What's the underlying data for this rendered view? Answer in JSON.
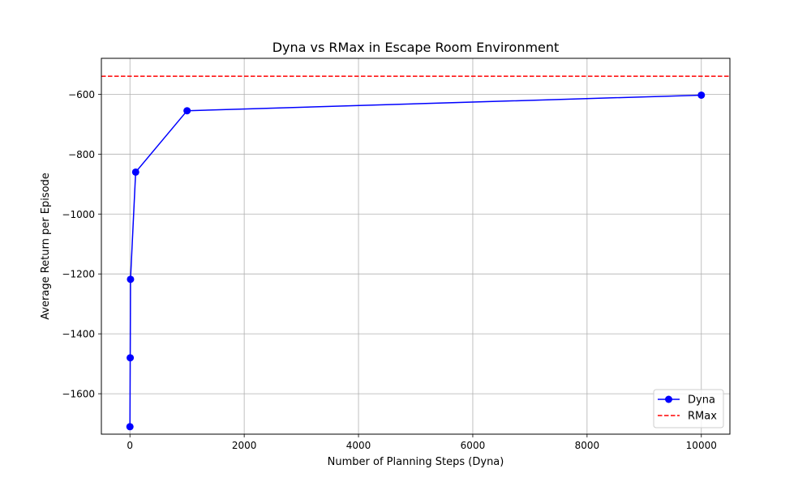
{
  "chart_data": {
    "type": "line",
    "title": "Dyna vs RMax in Escape Room Environment",
    "xlabel": "Number of Planning Steps (Dyna)",
    "ylabel": "Average Return per Episode",
    "xlim": [
      -500,
      10500
    ],
    "ylim": [
      -1735,
      -480
    ],
    "xticks": [
      0,
      2000,
      4000,
      6000,
      8000,
      10000
    ],
    "yticks": [
      -1600,
      -1400,
      -1200,
      -1000,
      -800,
      -600
    ],
    "xtick_labels": [
      "0",
      "2000",
      "4000",
      "6000",
      "8000",
      "10000"
    ],
    "ytick_labels": [
      "−1600",
      "−1400",
      "−1200",
      "−1000",
      "−800",
      "−600"
    ],
    "grid": true,
    "legend_position": "lower-right",
    "series": [
      {
        "name": "Dyna",
        "style": "solid-line-with-circle-markers",
        "color": "#0000ff",
        "x": [
          0,
          5,
          10,
          100,
          1000,
          10000
        ],
        "y": [
          -1710,
          -1480,
          -1218,
          -860,
          -655,
          -603
        ]
      }
    ],
    "hlines": [
      {
        "name": "RMax",
        "style": "dashed",
        "color": "#ff0000",
        "y": -540
      }
    ]
  }
}
